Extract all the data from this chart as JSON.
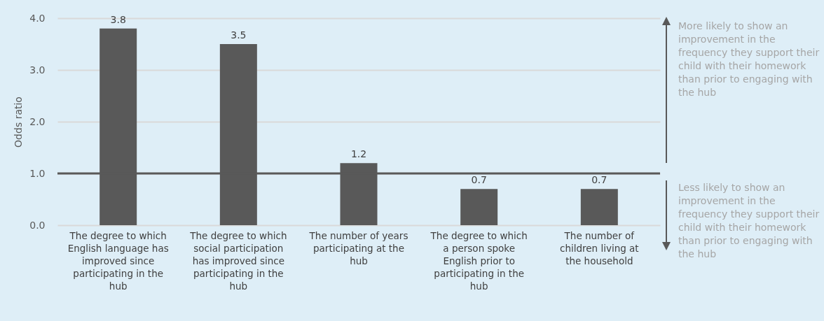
{
  "chart_data": {
    "type": "bar",
    "ylabel": "Odds ratio",
    "categories": [
      "The degree to which English language has improved since participating in the hub",
      "The degree to which social participation has improved since participating in the hub",
      "The number of years participating at the hub",
      "The degree to which a person spoke English prior to participating in the hub",
      "The number of children living at the household"
    ],
    "values": [
      3.8,
      3.5,
      1.2,
      0.7,
      0.7
    ],
    "color": "#595959",
    "data_labels": true,
    "ylim": [
      0,
      4
    ],
    "yticks": [
      {
        "value": 0,
        "label": "0.0"
      },
      {
        "value": 1,
        "label": "1.0"
      },
      {
        "value": 2,
        "label": "2.0"
      },
      {
        "value": 3,
        "label": "3.0"
      },
      {
        "value": 4,
        "label": "4.0"
      }
    ],
    "grid": "y",
    "ref_lines": [
      {
        "axis": "y",
        "value": 1,
        "color": "#595959"
      }
    ],
    "annotations": [
      "More likely to show an improvement in the frequency they support their child with their homework than prior to engaging with the hub",
      "Less likely to show an improvement in the frequency they support their child with their homework than prior to engaging with the hub"
    ]
  }
}
